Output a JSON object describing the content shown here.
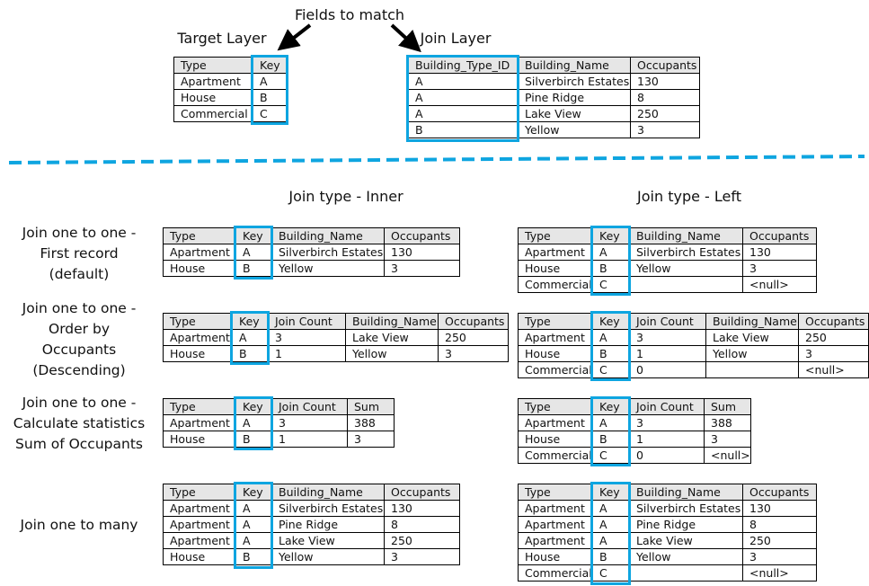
{
  "top": {
    "fields_to_match": "Fields to match",
    "target_title": "Target Layer",
    "join_title": "Join Layer"
  },
  "section_headers": {
    "inner": "Join type - Inner",
    "left": "Join type - Left"
  },
  "row_labels": [
    "Join one to one -\nFirst record\n(default)",
    "Join one to one -\nOrder by\nOccupants\n(Descending)",
    "Join one to one -\nCalculate statistics\nSum of Occupants",
    "Join one to many"
  ],
  "colors": {
    "key_highlight": "#0ea5e0",
    "header_bg": "#e6e6e6",
    "divider": "#0ea5e0"
  },
  "tables": {
    "target": {
      "headers": [
        "Type",
        "Key"
      ],
      "key_col": 1,
      "rows": [
        [
          "Apartment",
          "A"
        ],
        [
          "House",
          "B"
        ],
        [
          "Commercial",
          "C"
        ]
      ]
    },
    "join": {
      "headers": [
        "Building_Type_ID",
        "Building_Name",
        "Occupants"
      ],
      "key_col": 0,
      "rows": [
        [
          "A",
          "Silverbirch Estates",
          "130"
        ],
        [
          "A",
          "Pine Ridge",
          "8"
        ],
        [
          "A",
          "Lake View",
          "250"
        ],
        [
          "B",
          "Yellow",
          "3"
        ]
      ]
    },
    "inner1": {
      "headers": [
        "Type",
        "Key",
        "Building_Name",
        "Occupants"
      ],
      "key_col": 1,
      "rows": [
        [
          "Apartment",
          "A",
          "Silverbirch Estates",
          "130"
        ],
        [
          "House",
          "B",
          "Yellow",
          "3"
        ]
      ]
    },
    "left1": {
      "headers": [
        "Type",
        "Key",
        "Building_Name",
        "Occupants"
      ],
      "key_col": 1,
      "rows": [
        [
          "Apartment",
          "A",
          "Silverbirch Estates",
          "130"
        ],
        [
          "House",
          "B",
          "Yellow",
          "3"
        ],
        [
          "Commercial",
          "C",
          "",
          "<null>"
        ]
      ]
    },
    "inner2": {
      "headers": [
        "Type",
        "Key",
        "Join Count",
        "Building_Name",
        "Occupants"
      ],
      "key_col": 1,
      "rows": [
        [
          "Apartment",
          "A",
          "3",
          "Lake View",
          "250"
        ],
        [
          "House",
          "B",
          "1",
          "Yellow",
          "3"
        ]
      ]
    },
    "left2": {
      "headers": [
        "Type",
        "Key",
        "Join Count",
        "Building_Name",
        "Occupants"
      ],
      "key_col": 1,
      "rows": [
        [
          "Apartment",
          "A",
          "3",
          "Lake View",
          "250"
        ],
        [
          "House",
          "B",
          "1",
          "Yellow",
          "3"
        ],
        [
          "Commercial",
          "C",
          "0",
          "",
          "<null>"
        ]
      ]
    },
    "inner3": {
      "headers": [
        "Type",
        "Key",
        "Join Count",
        "Sum"
      ],
      "key_col": 1,
      "rows": [
        [
          "Apartment",
          "A",
          "3",
          "388"
        ],
        [
          "House",
          "B",
          "1",
          "3"
        ]
      ]
    },
    "left3": {
      "headers": [
        "Type",
        "Key",
        "Join Count",
        "Sum"
      ],
      "key_col": 1,
      "rows": [
        [
          "Apartment",
          "A",
          "3",
          "388"
        ],
        [
          "House",
          "B",
          "1",
          "3"
        ],
        [
          "Commercial",
          "C",
          "0",
          "<null>"
        ]
      ]
    },
    "inner4": {
      "headers": [
        "Type",
        "Key",
        "Building_Name",
        "Occupants"
      ],
      "key_col": 1,
      "rows": [
        [
          "Apartment",
          "A",
          "Silverbirch Estates",
          "130"
        ],
        [
          "Apartment",
          "A",
          "Pine Ridge",
          "8"
        ],
        [
          "Apartment",
          "A",
          "Lake View",
          "250"
        ],
        [
          "House",
          "B",
          "Yellow",
          "3"
        ]
      ]
    },
    "left4": {
      "headers": [
        "Type",
        "Key",
        "Building_Name",
        "Occupants"
      ],
      "key_col": 1,
      "rows": [
        [
          "Apartment",
          "A",
          "Silverbirch Estates",
          "130"
        ],
        [
          "Apartment",
          "A",
          "Pine Ridge",
          "8"
        ],
        [
          "Apartment",
          "A",
          "Lake View",
          "250"
        ],
        [
          "House",
          "B",
          "Yellow",
          "3"
        ],
        [
          "Commercial",
          "C",
          "",
          "<null>"
        ]
      ]
    }
  }
}
